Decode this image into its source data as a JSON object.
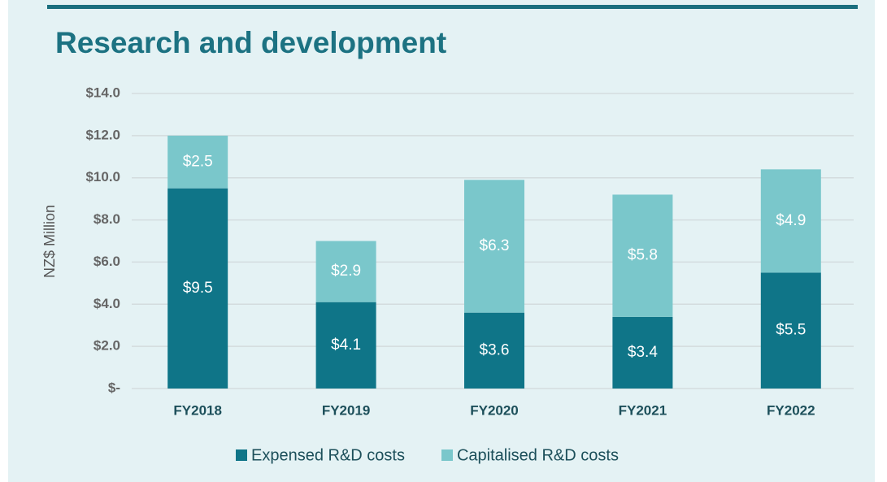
{
  "chart_data": {
    "type": "stacked_bar",
    "title": "Research and development",
    "y_label": "NZ$ Million",
    "categories": [
      "FY2018",
      "FY2019",
      "FY2020",
      "FY2021",
      "FY2022"
    ],
    "series": [
      {
        "name": "Expensed R&D costs",
        "color": "#0f7588",
        "values": [
          9.5,
          4.1,
          3.6,
          3.4,
          5.5
        ],
        "value_labels": [
          "$9.5",
          "$4.1",
          "$3.6",
          "$3.4",
          "$5.5"
        ]
      },
      {
        "name": "Capitalised R&D costs",
        "color": "#7ac7cb",
        "values": [
          2.5,
          2.9,
          6.3,
          5.8,
          4.9
        ],
        "value_labels": [
          "$2.5",
          "$2.9",
          "$6.3",
          "$5.8",
          "$4.9"
        ]
      }
    ],
    "ylim": [
      0,
      14
    ],
    "yticks": [
      {
        "value": 0,
        "label": "$-"
      },
      {
        "value": 2,
        "label": "$2.0"
      },
      {
        "value": 4,
        "label": "$4.0"
      },
      {
        "value": 6,
        "label": "$6.0"
      },
      {
        "value": 8,
        "label": "$8.0"
      },
      {
        "value": 10,
        "label": "$10.0"
      },
      {
        "value": 12,
        "label": "$12.0"
      },
      {
        "value": 14,
        "label": "$14.0"
      }
    ],
    "grid": true,
    "legend": "bottom"
  }
}
